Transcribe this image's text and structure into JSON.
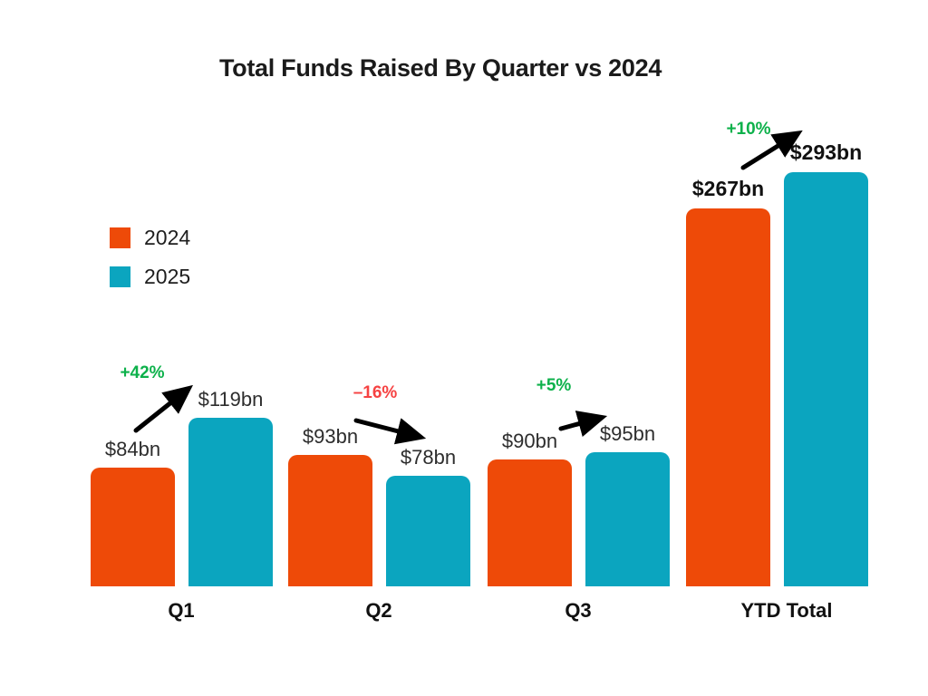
{
  "chart_data": {
    "type": "bar",
    "title": "Total Funds Raised By Quarter vs 2024",
    "categories": [
      "Q1",
      "Q2",
      "Q3",
      "YTD Total"
    ],
    "series": [
      {
        "name": "2024",
        "color": "#EE4A08",
        "values": [
          84,
          93,
          90,
          267
        ],
        "value_labels": [
          "$84bn",
          "$93bn",
          "$90bn",
          "$267bn"
        ]
      },
      {
        "name": "2025",
        "color": "#0BA5BF",
        "values": [
          119,
          78,
          95,
          293
        ],
        "value_labels": [
          "$119bn",
          "$78bn",
          "$95bn",
          "$293bn"
        ]
      }
    ],
    "change_labels": [
      {
        "text": "+42%",
        "trend": "up",
        "color": "#0DB14B"
      },
      {
        "text": "–16%",
        "trend": "down",
        "color": "#F64242"
      },
      {
        "text": "+5%",
        "trend": "up",
        "color": "#0DB14B"
      },
      {
        "text": "+10%",
        "trend": "up",
        "color": "#0DB14B"
      }
    ],
    "unit": "$bn",
    "ylim": [
      0,
      293
    ],
    "grid": false,
    "axes_visible": false,
    "legend_position": "upper-left"
  },
  "legend": {
    "items": [
      {
        "label": "2024",
        "color": "#EE4A08"
      },
      {
        "label": "2025",
        "color": "#0BA5BF"
      }
    ]
  },
  "colors": {
    "background": "#FFFFFF",
    "title_text": "#1B1B1B",
    "bar_2024": "#EE4A08",
    "bar_2025": "#0BA5BF",
    "positive_change": "#0DB14B",
    "negative_change": "#F64242",
    "arrow": "#000000"
  }
}
